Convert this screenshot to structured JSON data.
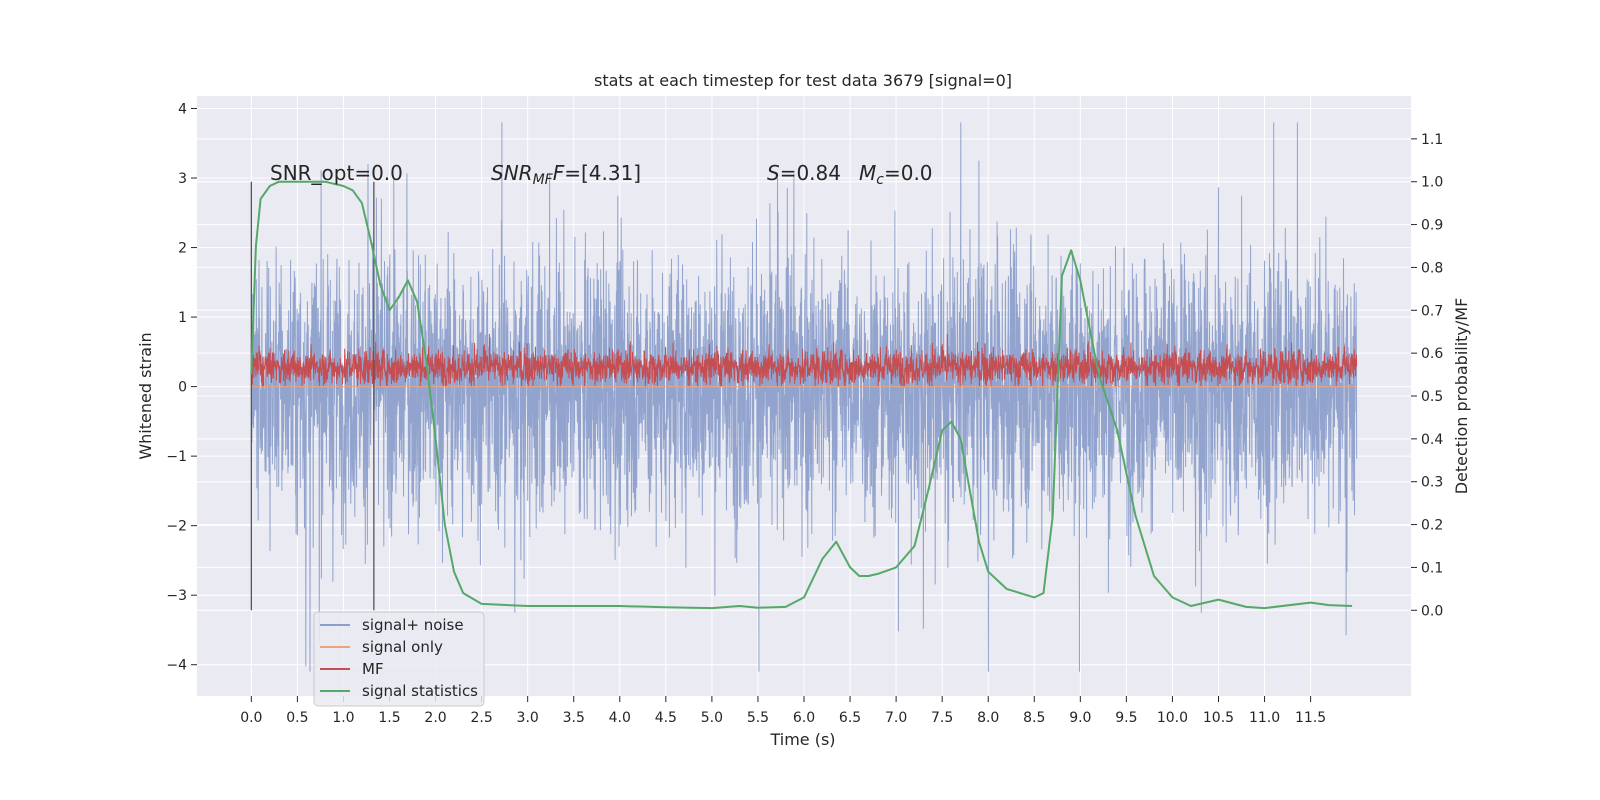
{
  "chart_data": {
    "type": "line",
    "title": "stats at each timestep for test data 3679 [signal=0]",
    "xlabel": "Time (s)",
    "ylabel": "Whitened strain",
    "ylabel_right": "Detection probability/MF",
    "xlim": [
      -0.59,
      12.59
    ],
    "ylim": [
      -4.45,
      4.18
    ],
    "ylim_right": [
      -0.2,
      1.2
    ],
    "x_ticks": [
      "0.0",
      "0.5",
      "1.0",
      "1.5",
      "2.0",
      "2.5",
      "3.0",
      "3.5",
      "4.0",
      "4.5",
      "5.0",
      "5.5",
      "6.0",
      "6.5",
      "7.0",
      "7.5",
      "8.0",
      "8.5",
      "9.0",
      "9.5",
      "10.0",
      "10.5",
      "11.0",
      "11.5"
    ],
    "y_ticks": [
      "−4",
      "−3",
      "−2",
      "−1",
      "0",
      "1",
      "2",
      "3",
      "4"
    ],
    "y_ticks_right": [
      "0.0",
      "0.1",
      "0.2",
      "0.3",
      "0.4",
      "0.5",
      "0.6",
      "0.7",
      "0.8",
      "0.9",
      "1.0",
      "1.1"
    ],
    "grid": true,
    "legend_position": "bottom-left",
    "legend": [
      "signal+ noise",
      "signal only",
      "MF",
      "signal statistics"
    ],
    "annotations": {
      "snr_opt": "SNR_opt=0.0",
      "snr_mf_base": "SNR",
      "snr_mf_sub": "MF",
      "snr_mf_rest": "=[4.31]",
      "s_var": "S",
      "s_val": "=0.84",
      "mc_var": "M",
      "mc_sub": "c",
      "mc_val": "=0.0"
    },
    "vlines_x": [
      0.0,
      1.33
    ],
    "series": [
      {
        "name": "signal+ noise",
        "axis": "left",
        "color": "#8da0cb",
        "x_range": [
          0.0,
          12.0
        ],
        "min": -4.1,
        "max": 3.8,
        "typical_range": [
          -1.8,
          1.8
        ]
      },
      {
        "name": "signal only",
        "axis": "left",
        "color": "#e8a482",
        "x": [
          0.0,
          12.0
        ],
        "y": [
          0.0,
          0.0
        ]
      },
      {
        "name": "MF",
        "axis": "left",
        "color": "#c44e52",
        "x_range": [
          0.0,
          12.0
        ],
        "min": 0.0,
        "max": 0.9,
        "typical_range": [
          0.05,
          0.55
        ]
      },
      {
        "name": "signal statistics",
        "axis": "right",
        "color": "#55a868",
        "x": [
          0.0,
          0.05,
          0.1,
          0.2,
          0.3,
          0.5,
          0.8,
          1.0,
          1.1,
          1.2,
          1.3,
          1.4,
          1.5,
          1.6,
          1.7,
          1.8,
          1.9,
          2.0,
          2.1,
          2.2,
          2.3,
          2.5,
          3.0,
          3.5,
          4.0,
          4.5,
          5.0,
          5.3,
          5.5,
          5.8,
          6.0,
          6.2,
          6.35,
          6.5,
          6.6,
          6.7,
          6.8,
          7.0,
          7.2,
          7.35,
          7.5,
          7.6,
          7.7,
          7.8,
          7.9,
          8.0,
          8.2,
          8.5,
          8.6,
          8.7,
          8.8,
          8.9,
          9.0,
          9.2,
          9.4,
          9.6,
          9.8,
          10.0,
          10.2,
          10.5,
          10.8,
          11.0,
          11.5,
          11.7,
          11.95
        ],
        "y": [
          0.55,
          0.85,
          0.96,
          0.99,
          1.0,
          1.0,
          1.0,
          0.99,
          0.98,
          0.95,
          0.86,
          0.76,
          0.7,
          0.73,
          0.77,
          0.72,
          0.58,
          0.4,
          0.2,
          0.09,
          0.04,
          0.015,
          0.01,
          0.01,
          0.01,
          0.007,
          0.005,
          0.01,
          0.006,
          0.008,
          0.03,
          0.12,
          0.16,
          0.1,
          0.08,
          0.08,
          0.085,
          0.1,
          0.15,
          0.28,
          0.42,
          0.44,
          0.4,
          0.28,
          0.16,
          0.09,
          0.05,
          0.03,
          0.04,
          0.22,
          0.78,
          0.84,
          0.77,
          0.55,
          0.42,
          0.22,
          0.08,
          0.03,
          0.01,
          0.025,
          0.008,
          0.005,
          0.018,
          0.012,
          0.01
        ]
      }
    ]
  }
}
